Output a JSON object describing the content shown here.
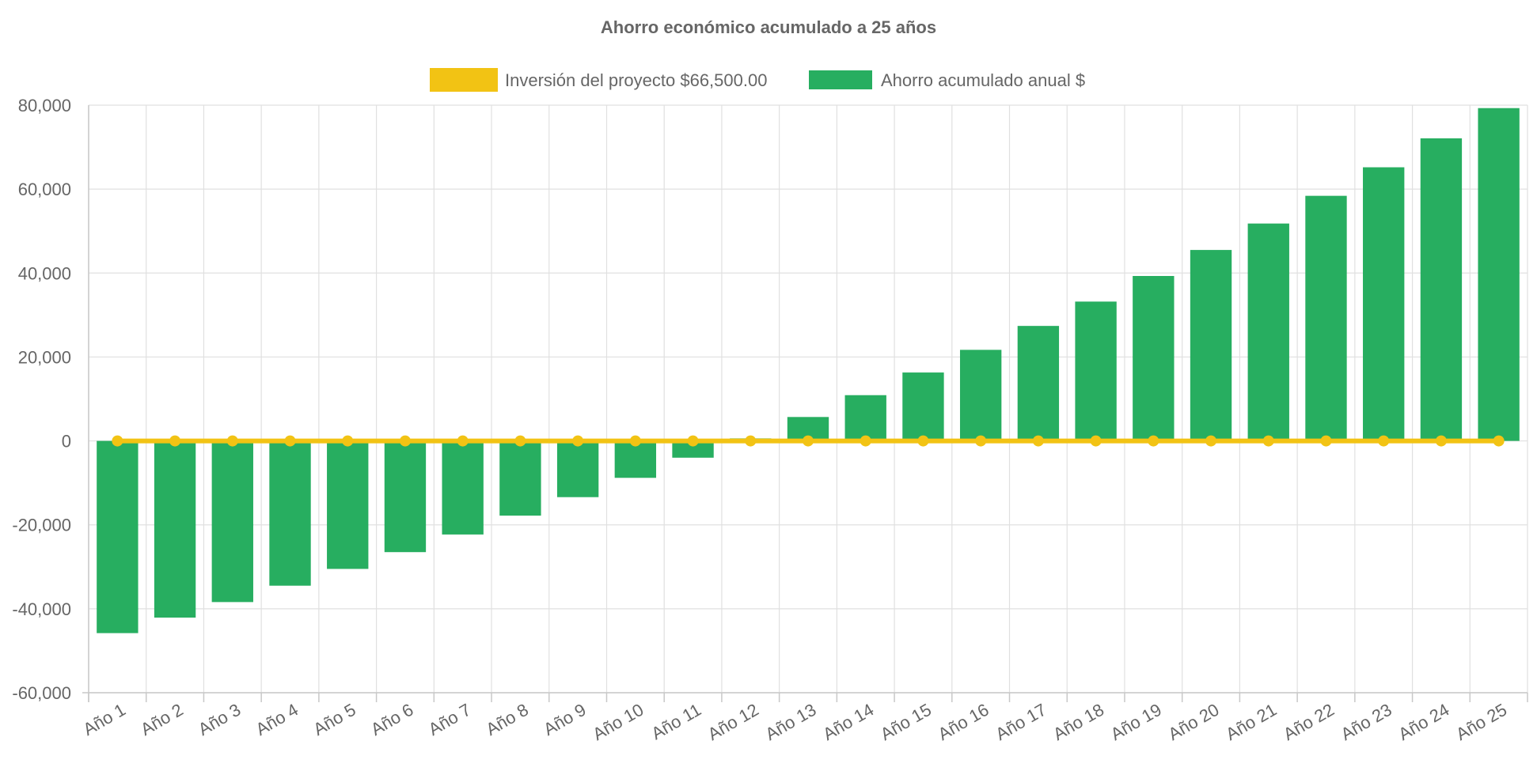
{
  "chart_data": {
    "type": "bar",
    "title": "Ahorro económico acumulado a 25 años",
    "xlabel": "",
    "ylabel": "",
    "categories": [
      "Año 1",
      "Año 2",
      "Año 3",
      "Año 4",
      "Año 5",
      "Año 6",
      "Año 7",
      "Año 8",
      "Año 9",
      "Año 10",
      "Año 11",
      "Año 12",
      "Año 13",
      "Año 14",
      "Año 15",
      "Año 16",
      "Año 17",
      "Año 18",
      "Año 19",
      "Año 20",
      "Año 21",
      "Año 22",
      "Año 23",
      "Año 24",
      "Año 25"
    ],
    "ylim": [
      -60000,
      80000
    ],
    "yticks": [
      80000,
      60000,
      40000,
      20000,
      0,
      -20000,
      -40000,
      -60000
    ],
    "ytick_labels": [
      "80,000",
      "60,000",
      "40,000",
      "20,000",
      "0",
      "-20,000",
      "-40,000",
      "-60,000"
    ],
    "grid": true,
    "legend_position": "top-center",
    "series": [
      {
        "name": "Inversión del proyecto $66,500.00",
        "type": "line",
        "color": "#f2c314",
        "values": [
          0,
          0,
          0,
          0,
          0,
          0,
          0,
          0,
          0,
          0,
          0,
          0,
          0,
          0,
          0,
          0,
          0,
          0,
          0,
          0,
          0,
          0,
          0,
          0,
          0
        ]
      },
      {
        "name": "Ahorro acumulado anual $",
        "type": "bar",
        "color": "#27ae60",
        "values": [
          -45800,
          -42100,
          -38400,
          -34500,
          -30500,
          -26500,
          -22300,
          -17800,
          -13400,
          -8800,
          -4000,
          600,
          5700,
          10900,
          16300,
          21700,
          27400,
          33200,
          39300,
          45500,
          51800,
          58400,
          65200,
          72100,
          79300
        ]
      }
    ]
  }
}
